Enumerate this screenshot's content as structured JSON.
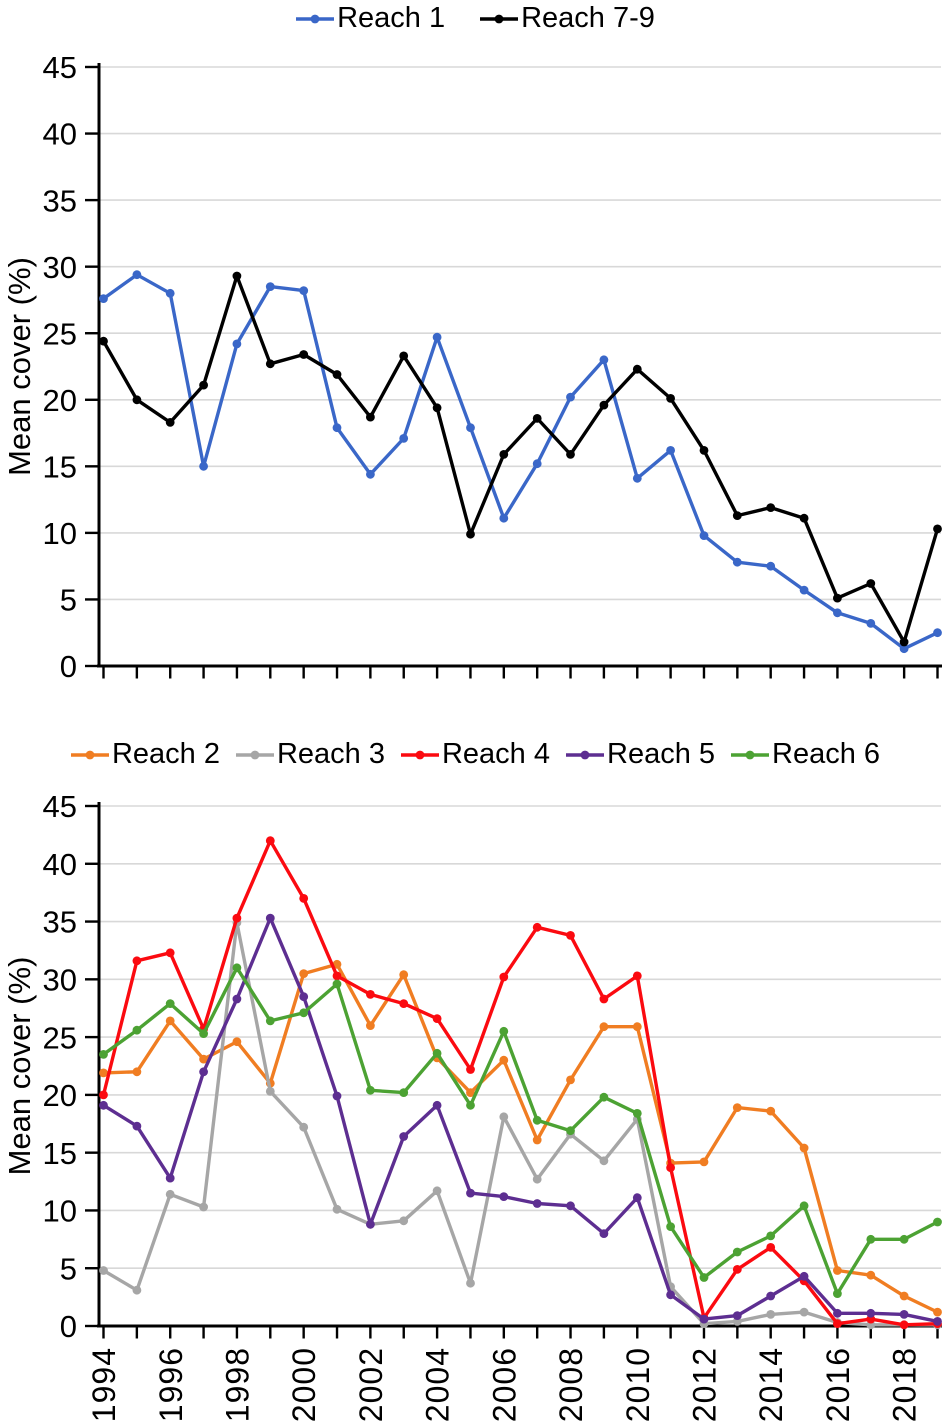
{
  "page": {
    "background": "#ffffff",
    "type": "two stacked line charts of mean vegetation cover by river reach"
  },
  "axis_style": {
    "axis_color": "#000000",
    "gridline_color": "#d8d8d8",
    "text_color": "#000000"
  },
  "chart_data": [
    {
      "type": "line",
      "title": "",
      "xlabel": "",
      "ylabel": "Mean cover (%)",
      "ylim": [
        0,
        45
      ],
      "yticks": [
        45,
        40,
        35,
        30,
        25,
        20,
        15,
        10,
        5,
        0
      ],
      "grid": "horizontal",
      "legend_position": "top-center",
      "x": [
        1994,
        1995,
        1996,
        1997,
        1998,
        1999,
        2000,
        2001,
        2002,
        2003,
        2004,
        2005,
        2006,
        2007,
        2008,
        2009,
        2010,
        2011,
        2012,
        2013,
        2014,
        2015,
        2016,
        2017,
        2018,
        2019
      ],
      "xtick_labels_shown": [],
      "series": [
        {
          "name": "Reach 1",
          "color": "#3a67c8",
          "values": [
            27.6,
            29.4,
            28.0,
            15.0,
            24.2,
            28.5,
            28.2,
            17.9,
            14.4,
            17.1,
            24.7,
            17.9,
            11.1,
            15.2,
            20.2,
            23.0,
            14.1,
            16.2,
            9.8,
            7.8,
            7.5,
            5.7,
            4.0,
            3.2,
            1.3,
            2.5
          ]
        },
        {
          "name": "Reach 7-9",
          "color": "#000000",
          "values": [
            24.4,
            20.0,
            18.3,
            21.1,
            29.3,
            22.7,
            23.4,
            21.9,
            18.7,
            23.3,
            19.4,
            9.9,
            15.9,
            18.6,
            15.9,
            19.6,
            22.3,
            20.1,
            16.2,
            11.3,
            11.9,
            11.1,
            5.1,
            6.2,
            1.8,
            10.3
          ]
        }
      ]
    },
    {
      "type": "line",
      "title": "",
      "xlabel": "",
      "ylabel": "Mean cover (%)",
      "ylim": [
        0,
        45
      ],
      "yticks": [
        45,
        40,
        35,
        30,
        25,
        20,
        15,
        10,
        5,
        0
      ],
      "grid": "horizontal",
      "legend_position": "top-center",
      "x": [
        1994,
        1995,
        1996,
        1997,
        1998,
        1999,
        2000,
        2001,
        2002,
        2003,
        2004,
        2005,
        2006,
        2007,
        2008,
        2009,
        2010,
        2011,
        2012,
        2013,
        2014,
        2015,
        2016,
        2017,
        2018,
        2019
      ],
      "xtick_labels_shown": [
        "1994",
        "1996",
        "1998",
        "2000",
        "2002",
        "2004",
        "2006",
        "2008",
        "2010",
        "2012",
        "2014",
        "2016",
        "2018"
      ],
      "series": [
        {
          "name": "Reach 2",
          "color": "#f07d22",
          "values": [
            21.9,
            22.0,
            26.4,
            23.1,
            24.6,
            21.0,
            30.5,
            31.3,
            26.0,
            30.4,
            23.2,
            20.2,
            23.0,
            16.1,
            21.3,
            25.9,
            25.9,
            14.1,
            14.2,
            18.9,
            18.6,
            15.4,
            4.8,
            4.4,
            2.6,
            1.2
          ]
        },
        {
          "name": "Reach 3",
          "color": "#a6a6a6",
          "values": [
            4.8,
            3.1,
            11.4,
            10.3,
            34.9,
            20.3,
            17.2,
            10.1,
            8.8,
            9.1,
            11.7,
            3.7,
            18.1,
            12.7,
            16.6,
            14.3,
            17.9,
            3.4,
            0.2,
            0.4,
            1.0,
            1.2,
            0.3,
            0.1,
            0.1,
            0.1
          ]
        },
        {
          "name": "Reach 4",
          "color": "#fb0a10",
          "values": [
            20.0,
            31.6,
            32.3,
            25.7,
            35.3,
            42.0,
            37.0,
            30.3,
            28.7,
            27.9,
            26.6,
            22.2,
            30.2,
            34.5,
            33.8,
            28.3,
            30.3,
            13.7,
            0.7,
            4.9,
            6.8,
            3.9,
            0.2,
            0.6,
            0.1,
            0.2
          ]
        },
        {
          "name": "Reach 5",
          "color": "#5d2e91",
          "values": [
            19.1,
            17.3,
            12.8,
            22.0,
            28.3,
            35.3,
            28.5,
            19.9,
            8.8,
            16.4,
            19.1,
            11.5,
            11.2,
            10.6,
            10.4,
            8.0,
            11.1,
            2.7,
            0.6,
            0.9,
            2.6,
            4.3,
            1.1,
            1.1,
            1.0,
            0.4
          ]
        },
        {
          "name": "Reach 6",
          "color": "#4ca233",
          "values": [
            23.5,
            25.6,
            27.9,
            25.3,
            31.0,
            26.4,
            27.1,
            29.6,
            20.4,
            20.2,
            23.6,
            19.1,
            25.5,
            17.8,
            16.9,
            19.8,
            18.4,
            8.6,
            4.2,
            6.4,
            7.8,
            10.4,
            2.8,
            7.5,
            7.5,
            9.0
          ]
        }
      ]
    }
  ]
}
